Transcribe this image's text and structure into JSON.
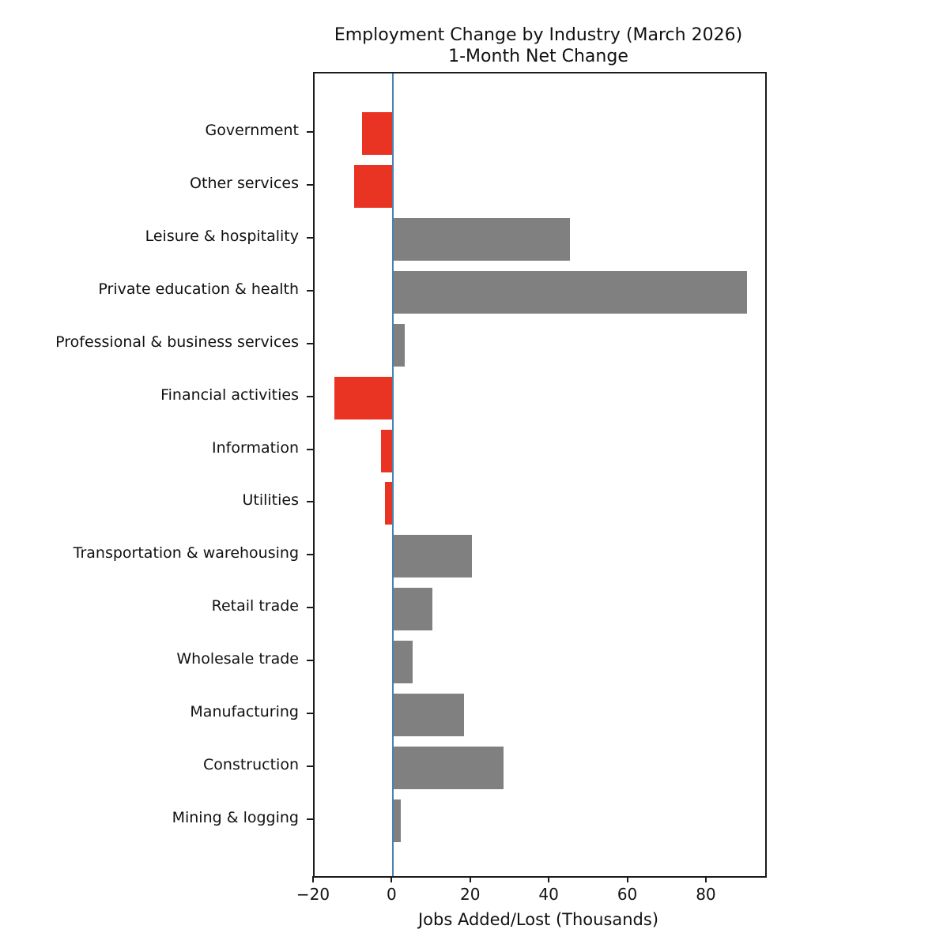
{
  "chart_data": {
    "type": "bar",
    "orientation": "horizontal",
    "title_line1": "Employment Change by Industry (March 2026)",
    "title_line2": "1-Month Net Change",
    "xlabel": "Jobs Added/Lost (Thousands)",
    "categories": [
      "Government",
      "Other services",
      "Leisure & hospitality",
      "Private education & health",
      "Professional & business services",
      "Financial activities",
      "Information",
      "Utilities",
      "Transportation & warehousing",
      "Retail trade",
      "Wholesale trade",
      "Manufacturing",
      "Construction",
      "Mining & logging"
    ],
    "values": [
      -8,
      -10,
      45,
      90,
      3,
      -15,
      -3,
      -2,
      20,
      10,
      5,
      18,
      28,
      2
    ],
    "xticks": [
      -20,
      0,
      20,
      40,
      60,
      80
    ],
    "xlim": [
      -20,
      94.7
    ],
    "grid": false,
    "legend": "none",
    "colors": {
      "positive_bar": "#808080",
      "negative_bar": "#e93323",
      "zero_line": "#4682b4",
      "spine": "#1a1a1a",
      "text": "#111111"
    }
  }
}
